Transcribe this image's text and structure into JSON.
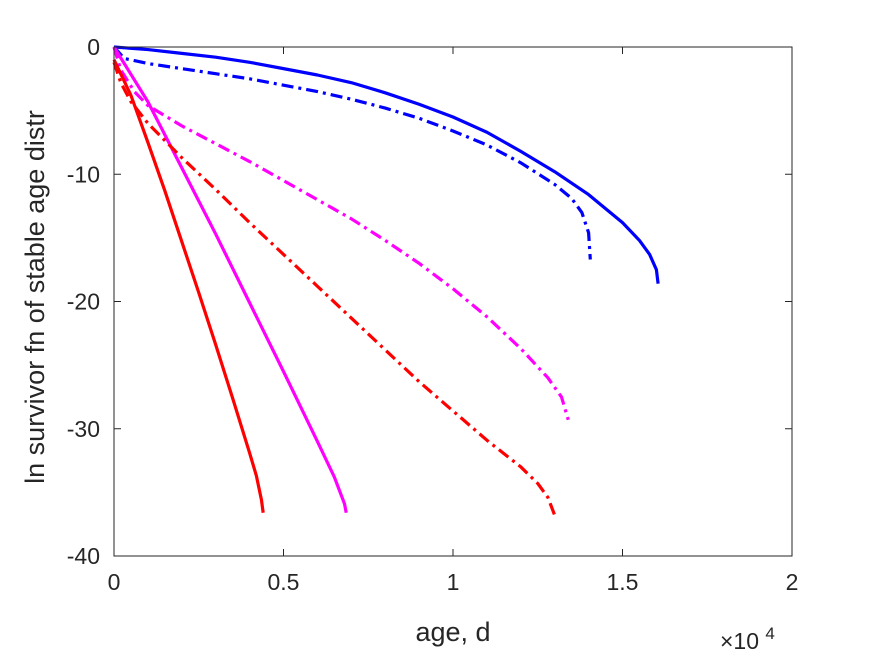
{
  "chart_data": {
    "type": "line",
    "title": "",
    "xlabel": "age, d",
    "ylabel": "ln survivor fn of stable age distr",
    "x_scale_exponent_label": {
      "base": "×10",
      "exponent": "4"
    },
    "xlim": [
      0,
      20000
    ],
    "ylim": [
      -40,
      0
    ],
    "x_ticks": [
      0,
      5000,
      10000,
      15000,
      20000
    ],
    "x_tick_labels": [
      "0",
      "0.5",
      "1",
      "1.5",
      "2"
    ],
    "y_ticks": [
      0,
      -10,
      -20,
      -30,
      -40
    ],
    "y_tick_labels": [
      "0",
      "-10",
      "-20",
      "-30",
      "-40"
    ],
    "grid": false,
    "legend": "none",
    "series": [
      {
        "color": "#0000ff",
        "style": "solid",
        "x": [
          0,
          1000,
          2000,
          3000,
          4000,
          5000,
          6000,
          7000,
          8000,
          9000,
          10000,
          11000,
          12000,
          13000,
          14000,
          15000,
          15500,
          15800,
          16000,
          16050
        ],
        "y": [
          0,
          -0.2,
          -0.5,
          -0.8,
          -1.2,
          -1.7,
          -2.2,
          -2.8,
          -3.6,
          -4.5,
          -5.5,
          -6.7,
          -8.2,
          -9.8,
          -11.6,
          -13.8,
          -15.2,
          -16.3,
          -17.5,
          -18.6
        ]
      },
      {
        "color": "#0000ff",
        "style": "dashdot",
        "x": [
          0,
          300,
          1000,
          2000,
          3000,
          4000,
          5000,
          6000,
          7000,
          8000,
          9000,
          10000,
          11000,
          12000,
          13000,
          13500,
          13800,
          14000,
          14050
        ],
        "y": [
          0,
          -0.9,
          -1.3,
          -1.7,
          -2.1,
          -2.5,
          -3.0,
          -3.5,
          -4.1,
          -4.8,
          -5.6,
          -6.6,
          -7.7,
          -9.1,
          -10.8,
          -11.9,
          -13.0,
          -14.6,
          -16.7
        ]
      },
      {
        "color": "#ff00ff",
        "style": "solid",
        "x": [
          0,
          1000,
          2000,
          3000,
          4000,
          5000,
          6000,
          6500,
          6700,
          6800,
          6850
        ],
        "y": [
          0,
          -4.3,
          -9.5,
          -14.7,
          -20.1,
          -25.5,
          -31.0,
          -33.8,
          -35.2,
          -35.9,
          -36.6
        ]
      },
      {
        "color": "#ff00ff",
        "style": "dashdot",
        "x": [
          0,
          200,
          600,
          1000,
          2000,
          3000,
          4000,
          5000,
          6000,
          7000,
          8000,
          9000,
          10000,
          11000,
          12000,
          12800,
          13200,
          13400
        ],
        "y": [
          0,
          -1.8,
          -3.5,
          -4.6,
          -6.2,
          -7.6,
          -9.0,
          -10.5,
          -12.0,
          -13.5,
          -15.2,
          -17.0,
          -19.0,
          -21.2,
          -23.7,
          -26.0,
          -27.5,
          -29.3
        ]
      },
      {
        "color": "#ff0000",
        "style": "solid",
        "x": [
          0,
          500,
          1000,
          1500,
          2000,
          2500,
          3000,
          3500,
          4000,
          4200,
          4350,
          4400
        ],
        "y": [
          -1.0,
          -3.8,
          -7.5,
          -11.3,
          -15.3,
          -19.3,
          -23.4,
          -27.6,
          -31.9,
          -33.7,
          -35.6,
          -36.6
        ]
      },
      {
        "color": "#ff0000",
        "style": "dashdot",
        "x": [
          0,
          200,
          500,
          1000,
          2000,
          3000,
          4000,
          5000,
          6000,
          7000,
          8000,
          9000,
          10000,
          11000,
          12000,
          12500,
          12800,
          13000
        ],
        "y": [
          -1.2,
          -2.8,
          -4.3,
          -6.0,
          -8.7,
          -11.2,
          -13.8,
          -16.3,
          -18.8,
          -21.3,
          -23.8,
          -26.3,
          -28.6,
          -30.9,
          -33.0,
          -34.3,
          -35.4,
          -36.8
        ]
      }
    ]
  }
}
